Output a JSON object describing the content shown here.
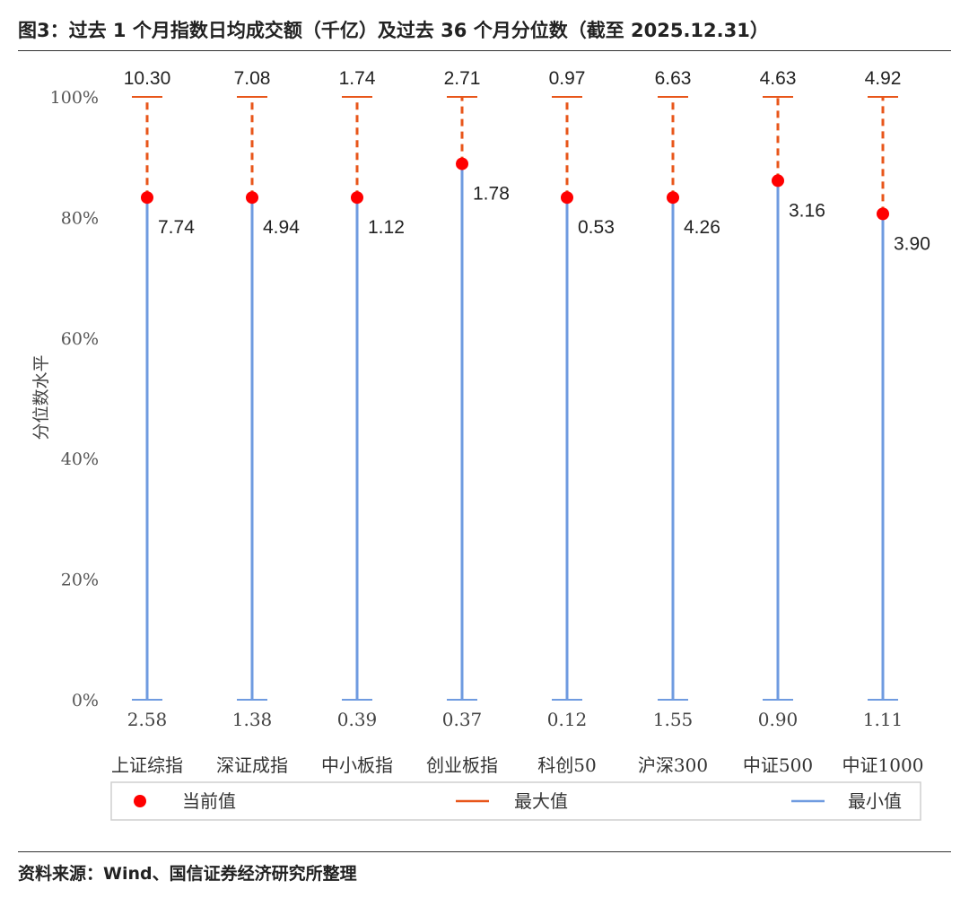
{
  "figure": {
    "title": "图3：过去 1 个月指数日均成交额（千亿）及过去 36 个月分位数（截至 2025.12.31）",
    "source": "资料来源：Wind、国信证券经济研究所整理"
  },
  "chart_data": {
    "type": "range-dot",
    "ylabel": "分位数水平",
    "ylim": [
      0,
      100
    ],
    "yticks": [
      "0%",
      "20%",
      "40%",
      "60%",
      "80%",
      "100%"
    ],
    "grid": false,
    "legend_position": "bottom",
    "categories": [
      "上证综指",
      "深证成指",
      "中小板指",
      "创业板指",
      "科创50",
      "沪深300",
      "中证500",
      "中证1000"
    ],
    "current_percentile": [
      83.3,
      83.3,
      83.3,
      88.9,
      83.3,
      83.3,
      86.1,
      80.6
    ],
    "current_label": [
      "7.74",
      "4.94",
      "1.12",
      "1.78",
      "0.53",
      "4.26",
      "3.16",
      "3.90"
    ],
    "max_label": [
      "10.30",
      "7.08",
      "1.74",
      "2.71",
      "0.97",
      "6.63",
      "4.63",
      "4.92"
    ],
    "min_label": [
      "2.58",
      "1.38",
      "0.39",
      "0.37",
      "0.12",
      "1.55",
      "0.90",
      "1.11"
    ],
    "max_percentile": 100,
    "min_percentile": 0,
    "series": [
      {
        "name": "当前值",
        "color": "#ff0000"
      },
      {
        "name": "最大值",
        "color": "#e8561a"
      },
      {
        "name": "最小值",
        "color": "#6f9be0"
      }
    ]
  }
}
